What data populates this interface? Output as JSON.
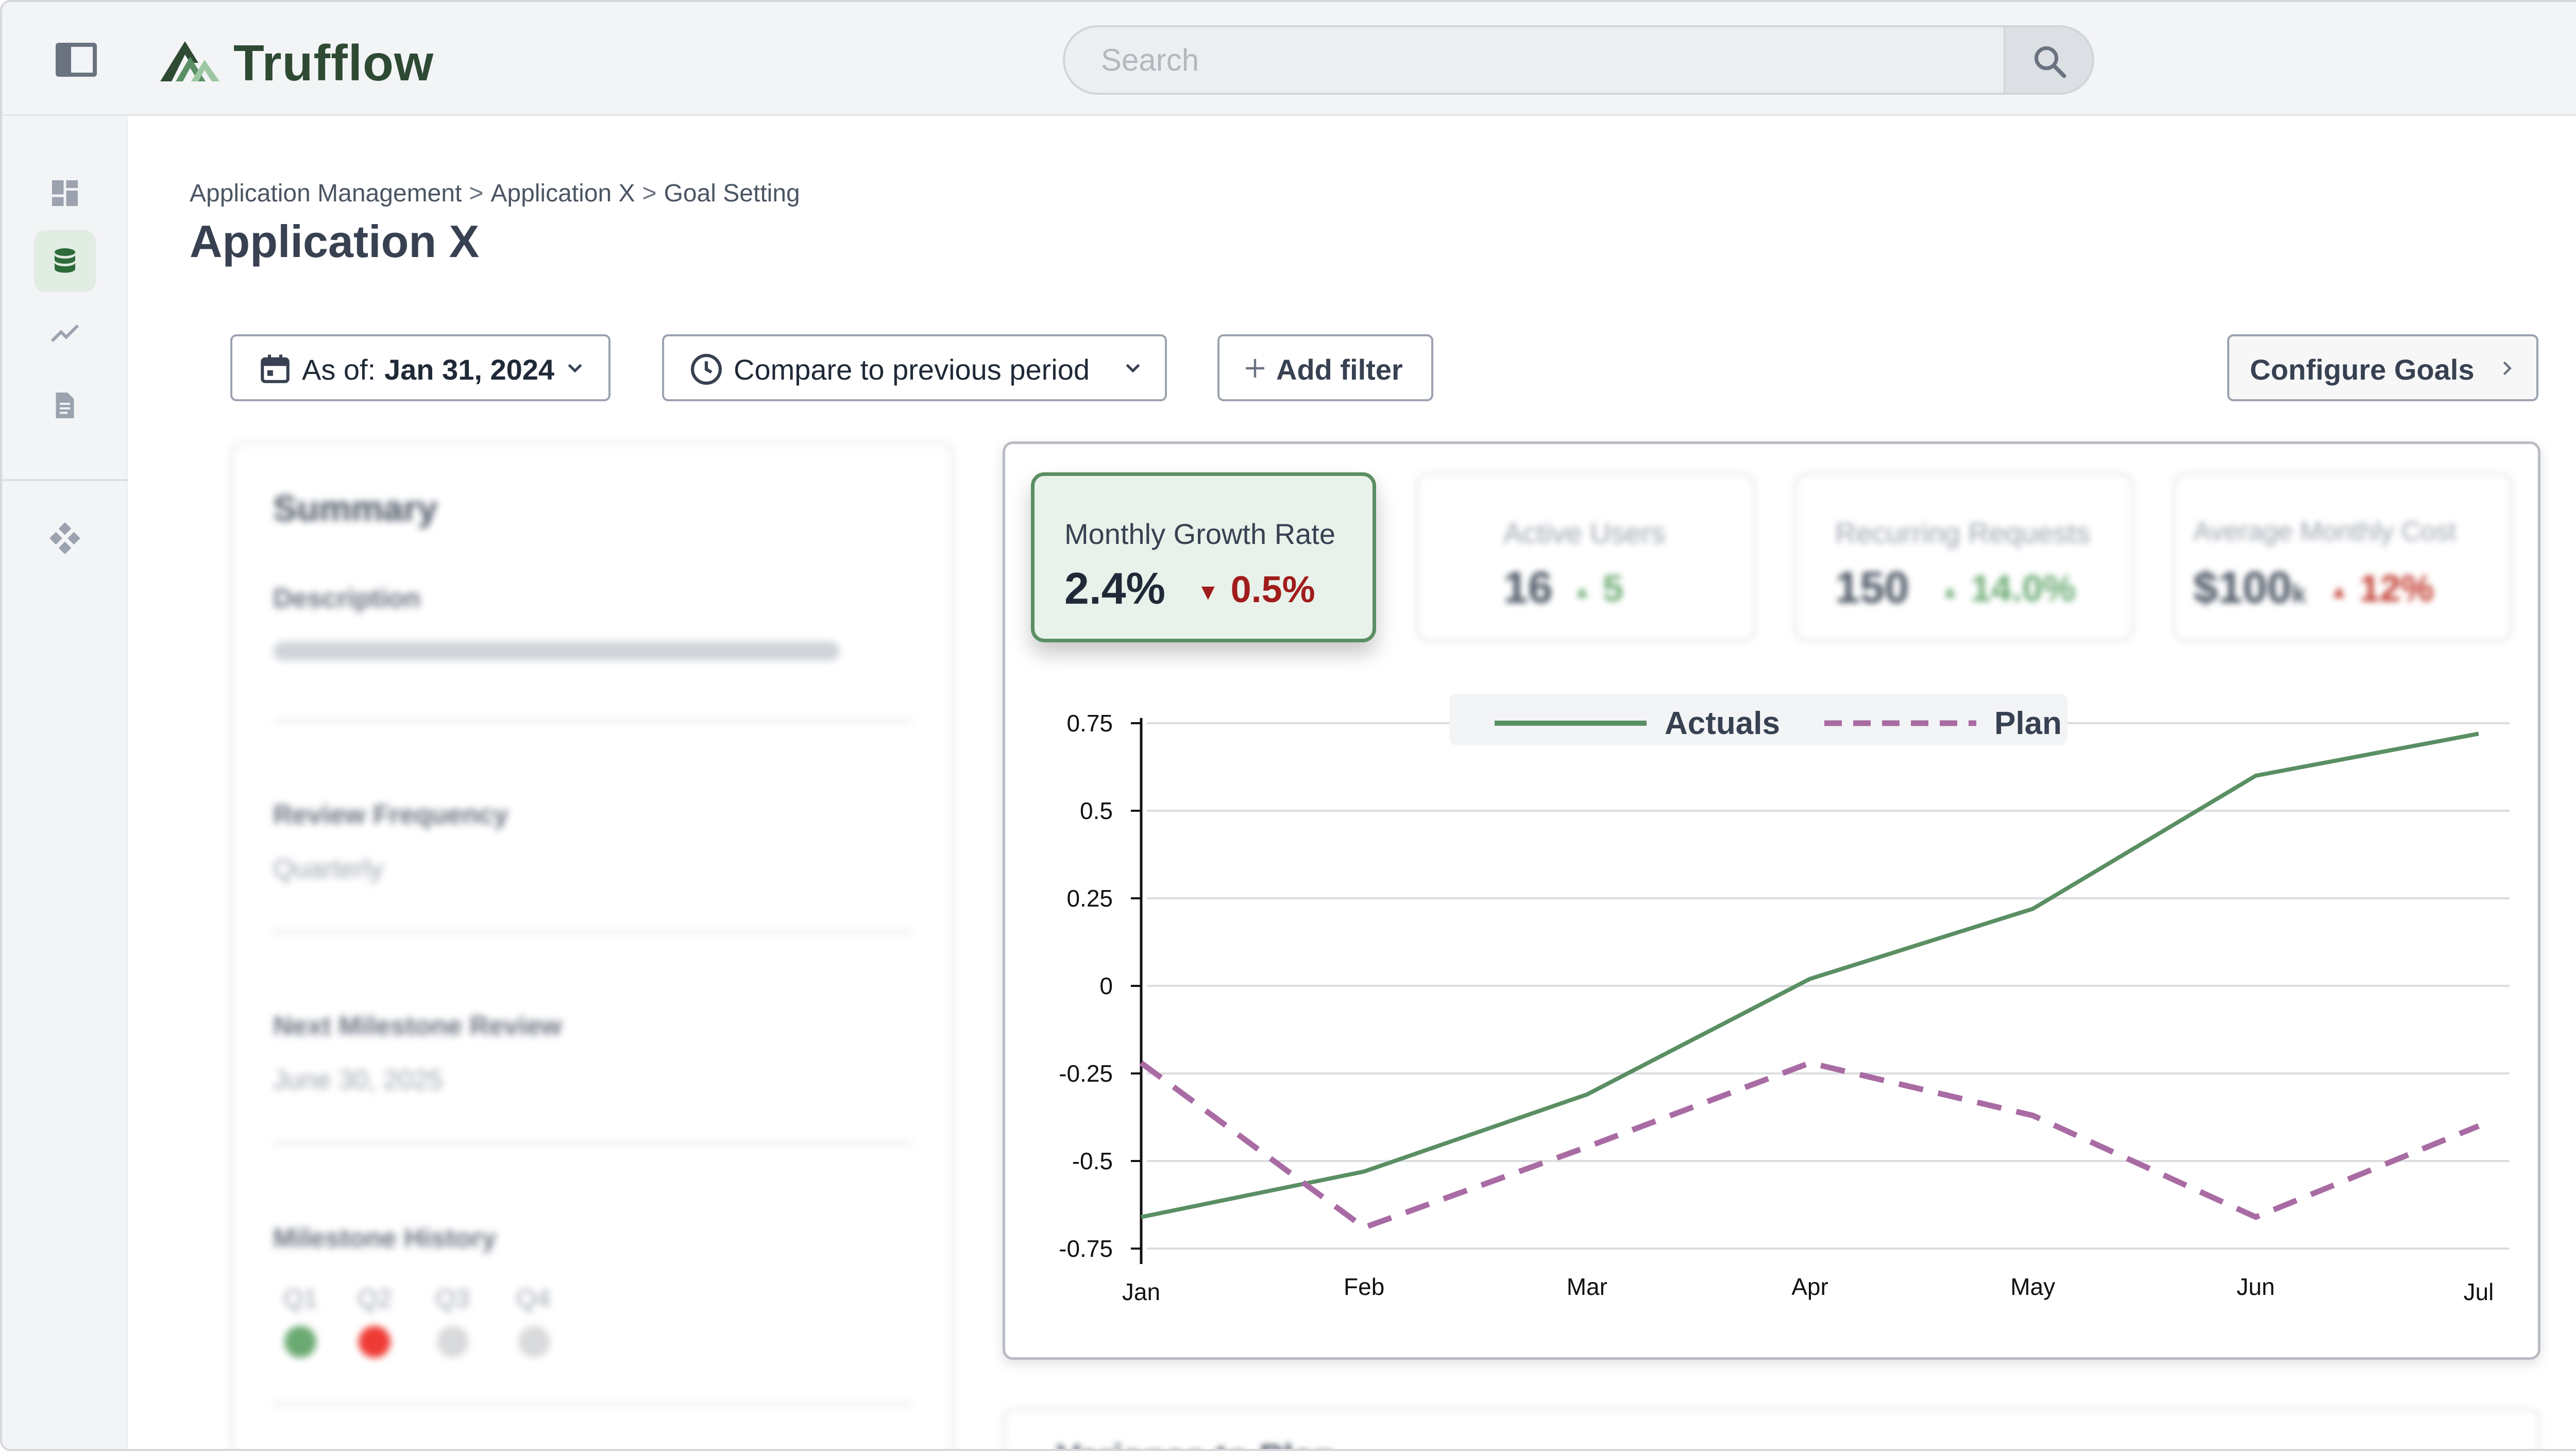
{
  "app": {
    "brand": "Trufflow"
  },
  "search": {
    "placeholder": "Search"
  },
  "rail": {
    "items": [
      "dashboard-icon",
      "database-icon",
      "trending-icon",
      "document-icon",
      "apps-icon"
    ]
  },
  "breadcrumb": [
    "Application Management",
    "Application X",
    "Goal Setting"
  ],
  "page": {
    "title": "Application X"
  },
  "controls": {
    "as_of_label": "As of:",
    "as_of_value": "Jan 31, 2024",
    "compare_label": "Compare to previous period",
    "add_filter_label": "Add filter",
    "configure_goals_label": "Configure Goals"
  },
  "summary": {
    "title": "Summary",
    "description_label": "Description",
    "review_frequency_label": "Review Frequency",
    "review_frequency_value": "Quarterly",
    "next_review_label": "Next Milestone Review",
    "next_review_value": "June 30, 2025",
    "milestone_history_label": "Milestone History",
    "quarters": [
      {
        "label": "Q1",
        "color": "#6aaa72"
      },
      {
        "label": "Q2",
        "color": "#ef3b35"
      },
      {
        "label": "Q3",
        "color": "#d9dadc"
      },
      {
        "label": "Q4",
        "color": "#d9dadc"
      }
    ]
  },
  "kpis": [
    {
      "title": "Monthly Growth Rate",
      "value": "2.4%",
      "delta": "0.5%",
      "direction": "down",
      "color": "#a11c1c",
      "selected": true
    },
    {
      "title": "Active Users",
      "value": "16",
      "delta": "5",
      "direction": "up",
      "color": "#6aaa72",
      "selected": false
    },
    {
      "title": "Recurring Requests",
      "value": "150",
      "delta": "14.0%",
      "direction": "up",
      "color": "#6aaa72",
      "selected": false
    },
    {
      "title": "Average Monthly Cost",
      "value": "$100",
      "value_suffix": "k",
      "delta": "12%",
      "direction": "up",
      "color": "#c0392b",
      "selected": false
    }
  ],
  "variance": {
    "title": "Variance to Plan"
  },
  "colors": {
    "accent": "#5a8f63",
    "plan": "#a96ba3",
    "brand": "#2e4a33"
  },
  "chart_data": {
    "type": "line",
    "categories": [
      "Jan",
      "Feb",
      "Mar",
      "Apr",
      "May",
      "Jun",
      "Jul"
    ],
    "series": [
      {
        "name": "Actuals",
        "values": [
          -0.66,
          -0.53,
          -0.31,
          0.02,
          0.22,
          0.6,
          0.72
        ],
        "color": "#5a8f63",
        "style": "solid"
      },
      {
        "name": "Plan",
        "values": [
          -0.22,
          -0.69,
          -0.46,
          -0.22,
          -0.37,
          -0.66,
          -0.4
        ],
        "color": "#a96ba3",
        "style": "dashed"
      }
    ],
    "yticks": [
      0.75,
      0.5,
      0.25,
      0,
      -0.25,
      -0.5,
      -0.75
    ],
    "ylim": [
      -0.75,
      0.75
    ],
    "grid": true,
    "legend": "top-center"
  }
}
